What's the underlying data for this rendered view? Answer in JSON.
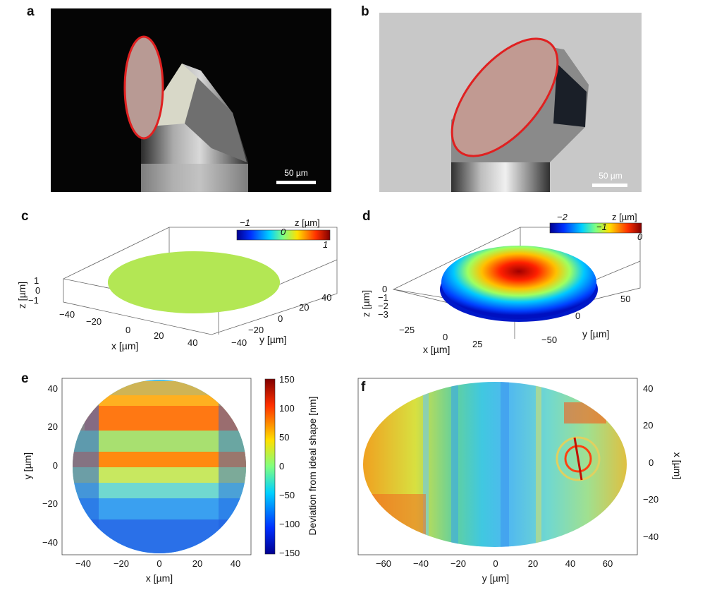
{
  "panels": {
    "a": {
      "label": "a",
      "scale_bar": "50 µm"
    },
    "b": {
      "label": "b",
      "scale_bar": "50 µm"
    },
    "c": {
      "label": "c",
      "colorbar_title": "z [µm]",
      "colorbar_ticks": [
        "−1",
        "0",
        "1"
      ],
      "x_label": "x [µm]",
      "y_label": "y [µm]",
      "z_label": "z [µm]",
      "x_ticks": [
        "−40",
        "−20",
        "0",
        "20",
        "40"
      ],
      "y_ticks": [
        "−40",
        "−20",
        "0",
        "20",
        "40"
      ],
      "z_ticks": [
        "1",
        "0",
        "−1"
      ]
    },
    "d": {
      "label": "d",
      "colorbar_title": "z [µm]",
      "colorbar_ticks": [
        "−2",
        "−1",
        "0"
      ],
      "x_label": "x [µm]",
      "y_label": "y [µm]",
      "z_label": "z [µm]",
      "x_ticks": [
        "−25",
        "0",
        "25"
      ],
      "y_ticks": [
        "50",
        "0",
        "−50"
      ],
      "z_ticks": [
        "0",
        "−1",
        "−2",
        "−3"
      ]
    },
    "e": {
      "label": "e",
      "x_label": "x [µm]",
      "y_label": "y [µm]",
      "x_ticks": [
        "−40",
        "−20",
        "0",
        "20",
        "40"
      ],
      "y_ticks": [
        "40",
        "20",
        "0",
        "−20",
        "−40"
      ],
      "colorbar_label": "Deviation from ideal shape [nm]",
      "colorbar_ticks": [
        "150",
        "100",
        "50",
        "0",
        "−50",
        "−100",
        "−150"
      ]
    },
    "f": {
      "label": "f",
      "x_label": "y [µm]",
      "y_label": "x [µm]",
      "x_ticks": [
        "−60",
        "−40",
        "−20",
        "0",
        "20",
        "40",
        "60"
      ],
      "y_ticks": [
        "40",
        "20",
        "0",
        "−20",
        "−40"
      ]
    }
  },
  "colors": {
    "outline": "#e02020",
    "jet": [
      "#00008f",
      "#0050ff",
      "#00d0ff",
      "#80ff80",
      "#ffd000",
      "#ff4000",
      "#800000"
    ]
  }
}
